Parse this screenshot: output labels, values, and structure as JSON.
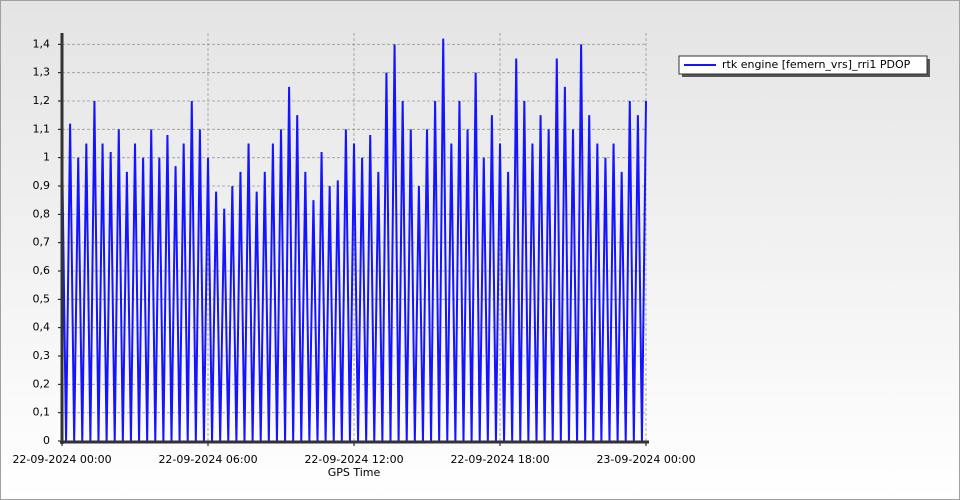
{
  "chart_data": {
    "type": "line",
    "xlabel": "GPS Time",
    "x": [
      0,
      10,
      20,
      30,
      40,
      50,
      60,
      70,
      80,
      90,
      100,
      110,
      120,
      130,
      140,
      150,
      160,
      170,
      180,
      190,
      200,
      210,
      220,
      230,
      240,
      250,
      260,
      270,
      280,
      290,
      300,
      310,
      320,
      330,
      340,
      350,
      360,
      370,
      380,
      390,
      400,
      410,
      420,
      430,
      440,
      450,
      460,
      470,
      480,
      490,
      500,
      510,
      520,
      530,
      540,
      550,
      560,
      570,
      580,
      590,
      600,
      610,
      620,
      630,
      640,
      650,
      660,
      670,
      680,
      690,
      700,
      710,
      720,
      730,
      740,
      750,
      760,
      770,
      780,
      790,
      800,
      810,
      820,
      830,
      840,
      850,
      860,
      870,
      880,
      890,
      900,
      910,
      920,
      930,
      940,
      950,
      960,
      970,
      980,
      990,
      1000,
      1010,
      1020,
      1030,
      1040,
      1050,
      1060,
      1070,
      1080,
      1090,
      1100,
      1110,
      1120,
      1130,
      1140,
      1150,
      1160,
      1170,
      1180,
      1190,
      1200,
      1210,
      1220,
      1230,
      1240,
      1250,
      1260,
      1270,
      1280,
      1290,
      1300,
      1310,
      1320,
      1330,
      1340,
      1350,
      1360,
      1370,
      1380,
      1390,
      1400,
      1410,
      1420,
      1430,
      1440
    ],
    "series": [
      {
        "name": "rtk engine [femern_vrs]_rri1 PDOP",
        "color": "#1414ff",
        "values": [
          1.05,
          0,
          1.12,
          0,
          1.0,
          0,
          1.05,
          0,
          1.2,
          0,
          1.05,
          0,
          1.02,
          0,
          1.1,
          0,
          0.95,
          0,
          1.05,
          0,
          1.0,
          0,
          1.1,
          0,
          1.0,
          0,
          1.08,
          0,
          0.97,
          0,
          1.05,
          0,
          1.2,
          0,
          1.1,
          0,
          1.0,
          0,
          0.88,
          0,
          0.82,
          0,
          0.9,
          0,
          0.95,
          0,
          1.05,
          0,
          0.88,
          0,
          0.95,
          0,
          1.05,
          0,
          1.1,
          0,
          1.25,
          0,
          1.15,
          0,
          0.95,
          0,
          0.85,
          0,
          1.02,
          0,
          0.9,
          0,
          0.92,
          0,
          1.1,
          0,
          1.05,
          0,
          1.0,
          0,
          1.08,
          0,
          0.95,
          0,
          1.3,
          0,
          1.4,
          0,
          1.2,
          0,
          1.1,
          0,
          0.9,
          0,
          1.1,
          0,
          1.2,
          0,
          1.42,
          0,
          1.05,
          0,
          1.2,
          0,
          1.1,
          0,
          1.3,
          0,
          1.0,
          0,
          1.15,
          0,
          1.05,
          0,
          0.95,
          0,
          1.35,
          0,
          1.2,
          0,
          1.05,
          0,
          1.15,
          0,
          1.1,
          0,
          1.35,
          0,
          1.25,
          0,
          1.1,
          0,
          1.4,
          0,
          1.15,
          0,
          1.05,
          0,
          1.0,
          0,
          1.05,
          0,
          0.95,
          0,
          1.2,
          0,
          1.15,
          0,
          1.2
        ]
      }
    ],
    "xlim": [
      0,
      1440
    ],
    "xticks": [
      {
        "value": 0,
        "label": "22-09-2024 00:00"
      },
      {
        "value": 360,
        "label": "22-09-2024 06:00"
      },
      {
        "value": 720,
        "label": "22-09-2024 12:00"
      },
      {
        "value": 1080,
        "label": "22-09-2024 18:00"
      },
      {
        "value": 1440,
        "label": "23-09-2024 00:00"
      }
    ],
    "ylim": [
      0,
      1.44
    ],
    "yticks": [
      0,
      {
        "value": 0.1,
        "label": "0,1"
      },
      {
        "value": 0.2,
        "label": "0,2"
      },
      {
        "value": 0.3,
        "label": "0,3"
      },
      {
        "value": 0.4,
        "label": "0,4"
      },
      {
        "value": 0.5,
        "label": "0,5"
      },
      {
        "value": 0.6,
        "label": "0,6"
      },
      {
        "value": 0.7,
        "label": "0,7"
      },
      {
        "value": 0.8,
        "label": "0,8"
      },
      {
        "value": 0.9,
        "label": "0,9"
      },
      1,
      {
        "value": 1.1,
        "label": "1,1"
      },
      {
        "value": 1.2,
        "label": "1,2"
      },
      {
        "value": 1.3,
        "label": "1,3"
      },
      {
        "value": 1.4,
        "label": "1,4"
      }
    ],
    "grid": true,
    "legend": "top-right"
  }
}
